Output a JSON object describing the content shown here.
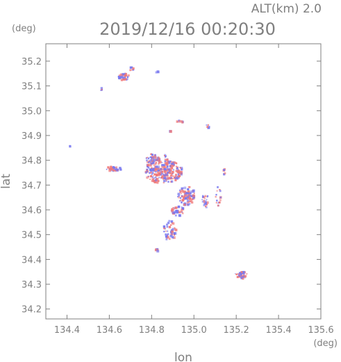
{
  "header": {
    "alt_label": "ALT(km)  2.0",
    "timestamp": "2019/12/16  00:20:30",
    "y_unit": "(deg)",
    "x_unit": "(deg)"
  },
  "chart_data": {
    "type": "scatter",
    "title": "2019/12/16  00:20:30",
    "xlabel": "lon",
    "ylabel": "lat",
    "xlim": [
      134.3,
      135.6
    ],
    "ylim": [
      34.16,
      35.27
    ],
    "x_ticks": [
      {
        "value": 134.4,
        "label": "134.4"
      },
      {
        "value": 134.6,
        "label": "134.6"
      },
      {
        "value": 134.8,
        "label": "134.8"
      },
      {
        "value": 135.0,
        "label": "135.0"
      },
      {
        "value": 135.2,
        "label": "135.2"
      },
      {
        "value": 135.4,
        "label": "135.4"
      },
      {
        "value": 135.6,
        "label": "135.6"
      }
    ],
    "y_ticks": [
      {
        "value": 34.2,
        "label": "34.2"
      },
      {
        "value": 34.3,
        "label": "34.3"
      },
      {
        "value": 34.4,
        "label": "34.4"
      },
      {
        "value": 34.5,
        "label": "34.5"
      },
      {
        "value": 34.6,
        "label": "34.6"
      },
      {
        "value": 34.7,
        "label": "34.7"
      },
      {
        "value": 34.8,
        "label": "34.8"
      },
      {
        "value": 34.9,
        "label": "34.9"
      },
      {
        "value": 35.0,
        "label": "35.0"
      },
      {
        "value": 35.1,
        "label": "35.1"
      },
      {
        "value": 35.2,
        "label": "35.2"
      }
    ],
    "series_colors": {
      "positive": "#f07878",
      "negative": "#7878f0"
    },
    "clusters": [
      {
        "lon": 134.67,
        "lat": 35.14,
        "rx": 0.03,
        "ry": 0.015,
        "n": 40
      },
      {
        "lon": 134.7,
        "lat": 35.17,
        "rx": 0.01,
        "ry": 0.01,
        "n": 8
      },
      {
        "lon": 134.56,
        "lat": 35.09,
        "rx": 0.008,
        "ry": 0.006,
        "n": 5
      },
      {
        "lon": 134.85,
        "lat": 34.76,
        "rx": 0.09,
        "ry": 0.05,
        "n": 260
      },
      {
        "lon": 134.8,
        "lat": 34.81,
        "rx": 0.03,
        "ry": 0.02,
        "n": 40
      },
      {
        "lon": 134.62,
        "lat": 34.77,
        "rx": 0.04,
        "ry": 0.01,
        "n": 40
      },
      {
        "lon": 134.96,
        "lat": 34.66,
        "rx": 0.04,
        "ry": 0.04,
        "n": 90
      },
      {
        "lon": 134.92,
        "lat": 34.6,
        "rx": 0.03,
        "ry": 0.02,
        "n": 35
      },
      {
        "lon": 134.88,
        "lat": 34.52,
        "rx": 0.03,
        "ry": 0.04,
        "n": 45
      },
      {
        "lon": 135.05,
        "lat": 34.64,
        "rx": 0.015,
        "ry": 0.03,
        "n": 25
      },
      {
        "lon": 135.11,
        "lat": 34.66,
        "rx": 0.015,
        "ry": 0.04,
        "n": 18
      },
      {
        "lon": 135.22,
        "lat": 34.34,
        "rx": 0.03,
        "ry": 0.015,
        "n": 45
      },
      {
        "lon": 134.82,
        "lat": 34.44,
        "rx": 0.01,
        "ry": 0.006,
        "n": 6
      },
      {
        "lon": 134.93,
        "lat": 34.96,
        "rx": 0.015,
        "ry": 0.006,
        "n": 8
      },
      {
        "lon": 135.06,
        "lat": 34.94,
        "rx": 0.008,
        "ry": 0.008,
        "n": 5
      },
      {
        "lon": 134.86,
        "lat": 34.82,
        "rx": 0.006,
        "ry": 0.006,
        "n": 4
      },
      {
        "lon": 135.14,
        "lat": 34.76,
        "rx": 0.006,
        "ry": 0.02,
        "n": 5
      },
      {
        "lon": 134.41,
        "lat": 34.86,
        "rx": 0.002,
        "ry": 0.002,
        "n": 2
      },
      {
        "lon": 134.82,
        "lat": 35.16,
        "rx": 0.01,
        "ry": 0.004,
        "n": 3
      },
      {
        "lon": 134.88,
        "lat": 34.92,
        "rx": 0.005,
        "ry": 0.005,
        "n": 2
      }
    ]
  }
}
